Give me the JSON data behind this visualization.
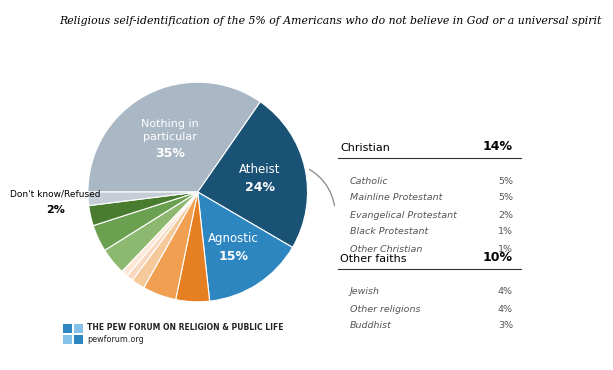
{
  "title": "Religious self-identification of the 5% of Americans who do not believe in God or a universal spirit",
  "slice_order": [
    {
      "label": "Nothing in particular",
      "value": 35,
      "color": "#aab7c4"
    },
    {
      "label": "Atheist",
      "value": 24,
      "color": "#1a5276"
    },
    {
      "label": "Agnostic",
      "value": 15,
      "color": "#2e86c1"
    },
    {
      "label": "Catholic",
      "value": 5,
      "color": "#e67e22"
    },
    {
      "label": "Mainline Protestant",
      "value": 5,
      "color": "#f0a050"
    },
    {
      "label": "Evangelical Protestant",
      "value": 2,
      "color": "#f5c99a"
    },
    {
      "label": "Black Protestant",
      "value": 1,
      "color": "#f8d8c0"
    },
    {
      "label": "Other Christian",
      "value": 1,
      "color": "#fde8d8"
    },
    {
      "label": "Jewish",
      "value": 4,
      "color": "#8db870"
    },
    {
      "label": "Other religions",
      "value": 4,
      "color": "#6aa050"
    },
    {
      "label": "Buddhist",
      "value": 3,
      "color": "#4a7c30"
    },
    {
      "label": "Don't know/Refused",
      "value": 2,
      "color": "#c5cdd6"
    }
  ],
  "christian_total": 14,
  "other_faiths_total": 10,
  "christian_sub": [
    {
      "label": "Catholic",
      "value": 5
    },
    {
      "label": "Mainline Protestant",
      "value": 5
    },
    {
      "label": "Evangelical Protestant",
      "value": 2
    },
    {
      "label": "Black Protestant",
      "value": 1
    },
    {
      "label": "Other Christian",
      "value": 1
    }
  ],
  "other_faiths_sub": [
    {
      "label": "Jewish",
      "value": 4
    },
    {
      "label": "Other religions",
      "value": 4
    },
    {
      "label": "Buddhist",
      "value": 3
    }
  ],
  "background_color": "#ffffff",
  "pew_logo_dark": "#2e86c1",
  "pew_logo_light": "#85c1e9"
}
